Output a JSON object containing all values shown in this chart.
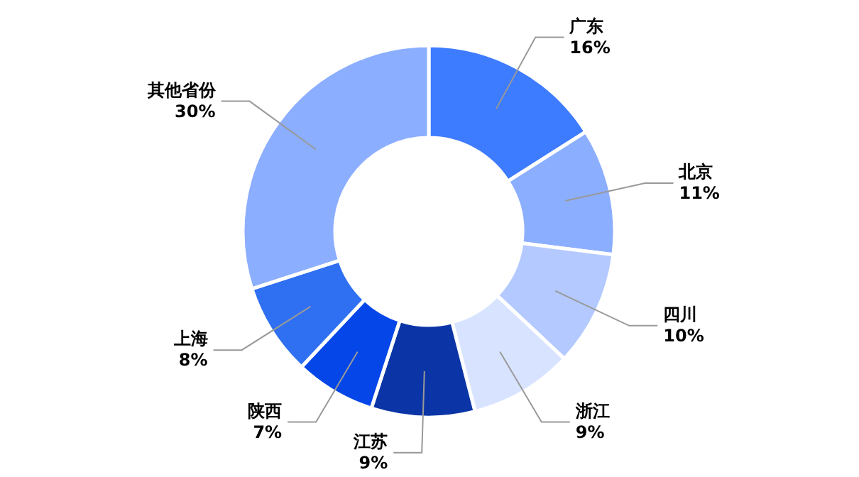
{
  "chart_data": {
    "type": "donut",
    "categories": [
      "广东",
      "北京",
      "四川",
      "浙江",
      "江苏",
      "陕西",
      "上海",
      "其他省份"
    ],
    "values": [
      16,
      11,
      10,
      9,
      9,
      7,
      8,
      30
    ],
    "value_labels": [
      "16%",
      "11%",
      "10%",
      "9%",
      "9%",
      "7%",
      "8%",
      "30%"
    ],
    "colors": [
      "#3d7bff",
      "#8caeff",
      "#b3c9ff",
      "#d8e4ff",
      "#0b35a6",
      "#0446e8",
      "#2f6ff2",
      "#8caeff"
    ]
  }
}
